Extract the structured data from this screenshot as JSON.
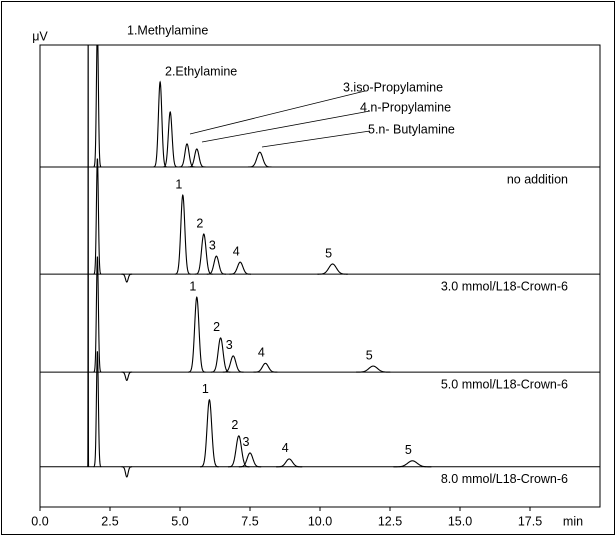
{
  "chart_data": {
    "type": "chromatogram",
    "y_label": "μV",
    "x_label": "min",
    "xlim": [
      0,
      20
    ],
    "xticks": [
      {
        "value": 0,
        "label": "0.0"
      },
      2.5,
      {
        "value": 5,
        "label": "5.0"
      },
      7.5,
      {
        "value": 10,
        "label": "10.0"
      },
      12.5,
      {
        "value": 15,
        "label": "15.0"
      },
      17.5
    ],
    "ylim": [
      0,
      100
    ],
    "color": "#000000",
    "series": [
      {
        "name": "no addition",
        "baseline": 73.6,
        "x": [
          2.05,
          4.29,
          4.65,
          5.25,
          5.6,
          7.85
        ],
        "values": [
          30,
          18.4,
          11.9,
          5.0,
          3.9,
          3.2
        ],
        "peak_labels": [
          null,
          "1.Methylamine",
          "2.Ethylamine",
          "3.iso-Propylamine",
          "4.n-Propylamine",
          "5.n- Butylamine"
        ]
      },
      {
        "name": "3.0 mmol/L18-Crown-6",
        "baseline": 50.4,
        "x": [
          2.05,
          3.1,
          5.1,
          5.85,
          6.3,
          7.15,
          10.45
        ],
        "values": [
          25,
          -1.7,
          17.1,
          8.7,
          3.9,
          2.6,
          2.2
        ],
        "peak_labels": [
          null,
          null,
          "1",
          "2",
          "3",
          "4",
          "5"
        ]
      },
      {
        "name": "5.0 mmol/L18-Crown-6",
        "baseline": 29.2,
        "x": [
          2.05,
          3.1,
          5.6,
          6.45,
          6.9,
          8.05,
          11.9
        ],
        "values": [
          25,
          -1.8,
          16.2,
          7.4,
          3.5,
          1.9,
          1.3
        ],
        "peak_labels": [
          null,
          null,
          "1",
          "2",
          "3",
          "4",
          "5"
        ]
      },
      {
        "name": "8.0 mmol/L18-Crown-6",
        "baseline": 8.7,
        "x": [
          1.72,
          2.05,
          3.1,
          6.05,
          7.1,
          7.5,
          8.9,
          13.3
        ],
        "values": [
          100,
          25,
          -2.2,
          14.5,
          6.7,
          3.0,
          1.7,
          1.3
        ],
        "peak_labels": [
          null,
          null,
          null,
          "1",
          "2",
          "3",
          "4",
          "5"
        ]
      }
    ]
  }
}
